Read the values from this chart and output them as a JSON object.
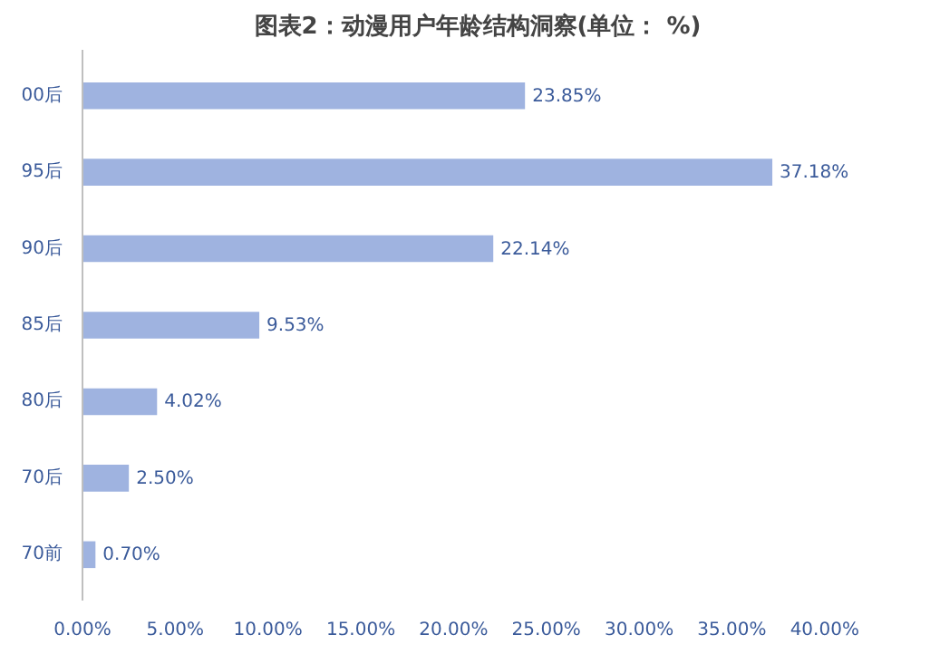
{
  "chart_data": {
    "type": "bar",
    "orientation": "horizontal",
    "title": "图表2：动漫用户年龄结构洞察(单位： %)",
    "categories": [
      "00后",
      "95后",
      "90后",
      "85后",
      "80后",
      "70后",
      "70前"
    ],
    "values": [
      23.85,
      37.18,
      22.14,
      9.53,
      4.02,
      2.5,
      0.7
    ],
    "value_labels": [
      "23.85%",
      "37.18%",
      "22.14%",
      "9.53%",
      "4.02%",
      "2.50%",
      "0.70%"
    ],
    "color": "#9fb3e0",
    "xlim": [
      0,
      40
    ],
    "xticks": [
      {
        "value": 0,
        "label": "0.00%"
      },
      {
        "value": 5,
        "label": "5.00%"
      },
      {
        "value": 10,
        "label": "10.00%"
      },
      {
        "value": 15,
        "label": "15.00%"
      },
      {
        "value": 20,
        "label": "20.00%"
      },
      {
        "value": 25,
        "label": "25.00%"
      },
      {
        "value": 30,
        "label": "30.00%"
      },
      {
        "value": 35,
        "label": "35.00%"
      },
      {
        "value": 40,
        "label": "40.00%"
      }
    ],
    "grid": false
  }
}
